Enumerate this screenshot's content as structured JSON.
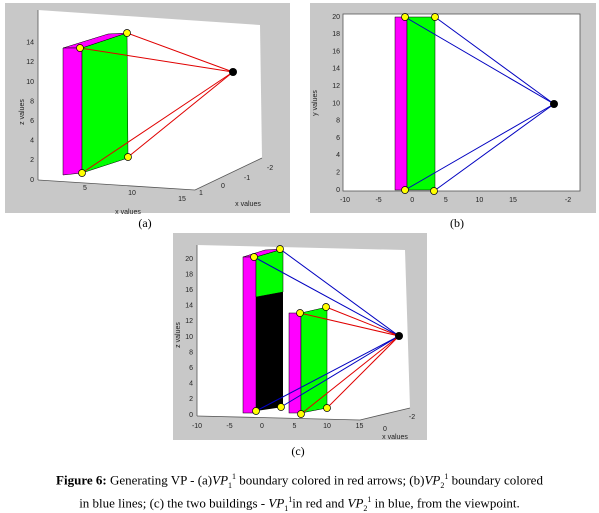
{
  "panels": [
    {
      "label": "(a)",
      "axis_labels": [
        "z values",
        "x values",
        "x values"
      ],
      "ticks": [
        "0",
        "2",
        "4",
        "6",
        "8",
        "10",
        "12",
        "14",
        "5",
        "10",
        "15",
        "-2",
        "-1",
        "0",
        "1"
      ]
    },
    {
      "label": "(b)",
      "axis_labels": [
        "y values"
      ],
      "ticks": [
        "0",
        "2",
        "4",
        "6",
        "8",
        "10",
        "12",
        "14",
        "16",
        "18",
        "20",
        "-10",
        "-5",
        "0",
        "5",
        "10",
        "15",
        "-2"
      ]
    },
    {
      "label": "(c)",
      "axis_labels": [
        "z values",
        "x values"
      ],
      "ticks": [
        "0",
        "2",
        "4",
        "6",
        "8",
        "10",
        "12",
        "14",
        "16",
        "18",
        "20",
        "-10",
        "-5",
        "0",
        "5",
        "10",
        "15",
        "-2",
        "0"
      ]
    }
  ],
  "caption": {
    "figure": "Figure 6:",
    "parts": [
      " Generating VP - (a)",
      "VP",
      "1",
      "1",
      " boundary colored in red arrows; (b)",
      "VP",
      "2",
      "1",
      " boundary colored"
    ],
    "line2": [
      "in blue lines; (c) the two buildings - ",
      "VP",
      "1",
      "1",
      "in red and ",
      "VP",
      "2",
      "1",
      " in blue, from the viewpoint."
    ]
  }
}
